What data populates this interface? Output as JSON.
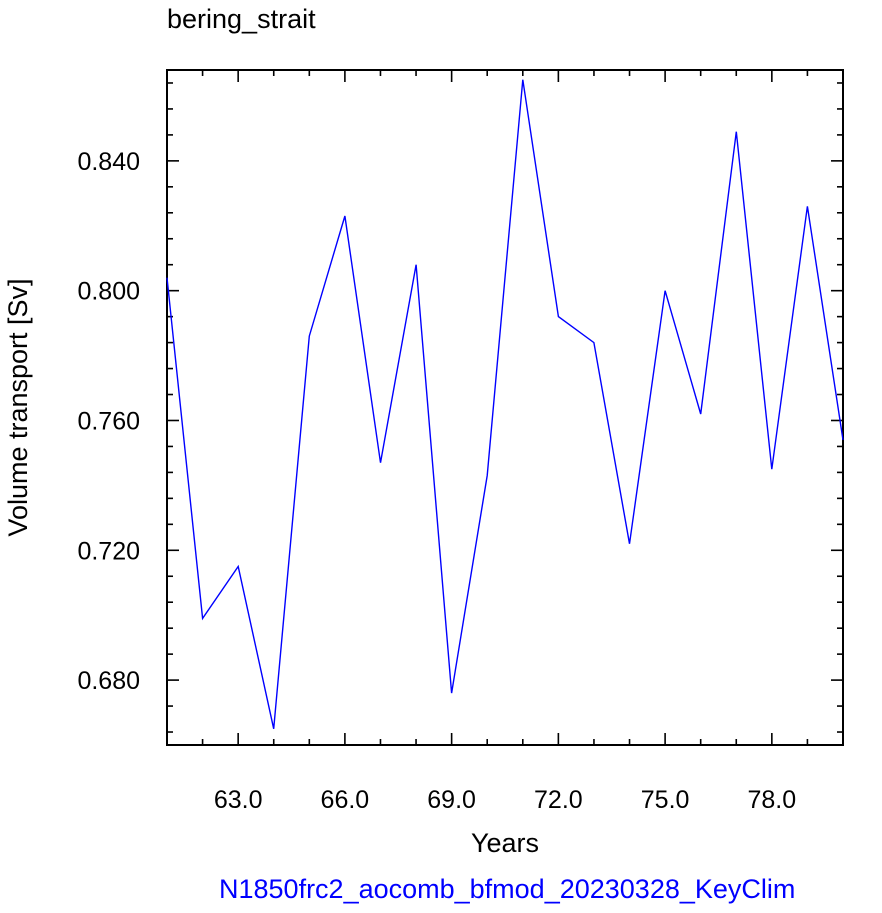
{
  "chart_data": {
    "type": "line",
    "title": "bering_strait",
    "xlabel": "Years",
    "ylabel": "Volume transport [Sv]",
    "xlim": [
      61.0,
      80.0
    ],
    "ylim": [
      0.66,
      0.868
    ],
    "xticks": [
      {
        "value": 63.0,
        "label": "63.0"
      },
      {
        "value": 66.0,
        "label": "66.0"
      },
      {
        "value": 69.0,
        "label": "69.0"
      },
      {
        "value": 72.0,
        "label": "72.0"
      },
      {
        "value": 75.0,
        "label": "75.0"
      },
      {
        "value": 78.0,
        "label": "78.0"
      }
    ],
    "yticks": [
      {
        "value": 0.68,
        "label": "0.680"
      },
      {
        "value": 0.72,
        "label": "0.720"
      },
      {
        "value": 0.76,
        "label": "0.760"
      },
      {
        "value": 0.8,
        "label": "0.800"
      },
      {
        "value": 0.84,
        "label": "0.840"
      }
    ],
    "grid": false,
    "series": [
      {
        "color": "#0000ff",
        "x": [
          61,
          62,
          63,
          64,
          65,
          66,
          67,
          68,
          69,
          70,
          71,
          72,
          73,
          74,
          75,
          76,
          77,
          78,
          79,
          80
        ],
        "y": [
          0.804,
          0.699,
          0.715,
          0.665,
          0.786,
          0.823,
          0.747,
          0.808,
          0.676,
          0.743,
          0.865,
          0.792,
          0.784,
          0.722,
          0.8,
          0.762,
          0.849,
          0.745,
          0.826,
          0.754
        ]
      }
    ],
    "caption": "N1850frc2_aocomb_bfmod_20230328_KeyClim",
    "caption_color": "#0000ff"
  }
}
